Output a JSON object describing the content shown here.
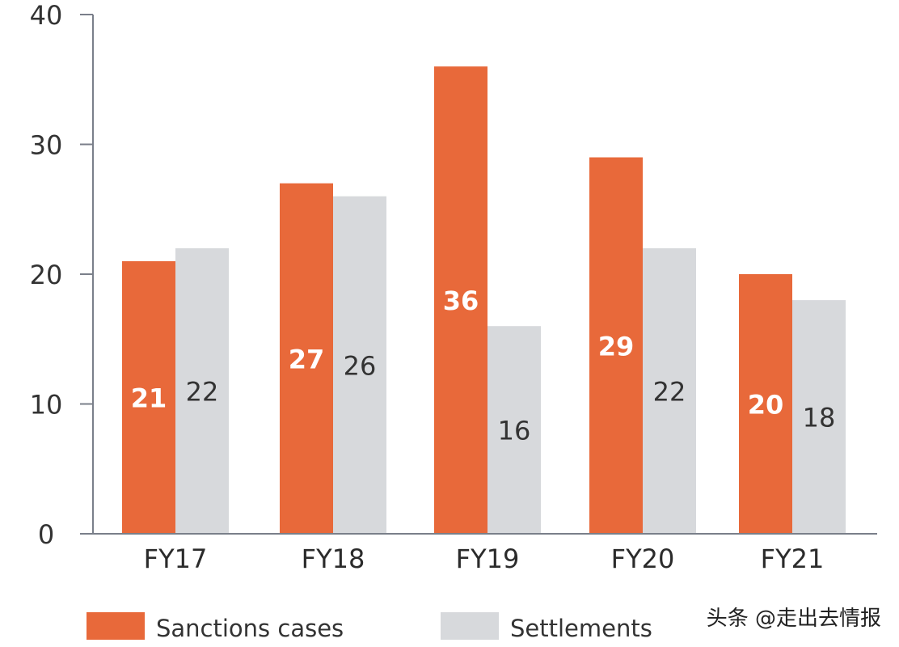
{
  "chart_data": {
    "type": "bar",
    "categories": [
      "FY17",
      "FY18",
      "FY19",
      "FY20",
      "FY21"
    ],
    "series": [
      {
        "name": "Sanctions cases",
        "values": [
          21,
          27,
          36,
          29,
          20
        ],
        "color": "#e8693a"
      },
      {
        "name": "Settlements",
        "values": [
          22,
          26,
          16,
          22,
          18
        ],
        "color": "#d7d9dc"
      }
    ],
    "yticks": [
      "0",
      "10",
      "20",
      "30",
      "40"
    ],
    "ylim": [
      0,
      40
    ],
    "grid": false,
    "legend_position": "bottom-left",
    "title": "",
    "xlabel": "",
    "ylabel": ""
  },
  "watermark": "头条 @走出去情报",
  "colors": {
    "axis": "#7a7f8a",
    "text": "#333333"
  }
}
